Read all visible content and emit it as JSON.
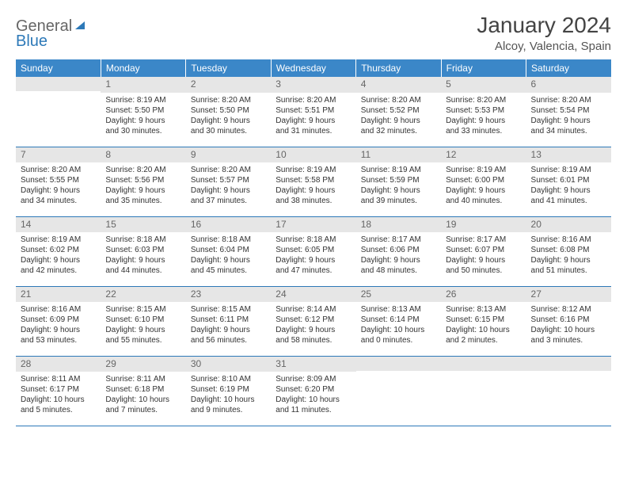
{
  "brand": {
    "general": "General",
    "blue": "Blue"
  },
  "title": "January 2024",
  "location": "Alcoy, Valencia, Spain",
  "weekdays": [
    "Sunday",
    "Monday",
    "Tuesday",
    "Wednesday",
    "Thursday",
    "Friday",
    "Saturday"
  ],
  "colors": {
    "header_bg": "#3b87c8",
    "header_text": "#ffffff",
    "daynum_bg": "#e6e6e6",
    "border": "#2d79b8",
    "logo_blue": "#2d79b8",
    "text": "#333333"
  },
  "weeks": [
    [
      {
        "num": "",
        "lines": []
      },
      {
        "num": "1",
        "lines": [
          "Sunrise: 8:19 AM",
          "Sunset: 5:50 PM",
          "Daylight: 9 hours",
          "and 30 minutes."
        ]
      },
      {
        "num": "2",
        "lines": [
          "Sunrise: 8:20 AM",
          "Sunset: 5:50 PM",
          "Daylight: 9 hours",
          "and 30 minutes."
        ]
      },
      {
        "num": "3",
        "lines": [
          "Sunrise: 8:20 AM",
          "Sunset: 5:51 PM",
          "Daylight: 9 hours",
          "and 31 minutes."
        ]
      },
      {
        "num": "4",
        "lines": [
          "Sunrise: 8:20 AM",
          "Sunset: 5:52 PM",
          "Daylight: 9 hours",
          "and 32 minutes."
        ]
      },
      {
        "num": "5",
        "lines": [
          "Sunrise: 8:20 AM",
          "Sunset: 5:53 PM",
          "Daylight: 9 hours",
          "and 33 minutes."
        ]
      },
      {
        "num": "6",
        "lines": [
          "Sunrise: 8:20 AM",
          "Sunset: 5:54 PM",
          "Daylight: 9 hours",
          "and 34 minutes."
        ]
      }
    ],
    [
      {
        "num": "7",
        "lines": [
          "Sunrise: 8:20 AM",
          "Sunset: 5:55 PM",
          "Daylight: 9 hours",
          "and 34 minutes."
        ]
      },
      {
        "num": "8",
        "lines": [
          "Sunrise: 8:20 AM",
          "Sunset: 5:56 PM",
          "Daylight: 9 hours",
          "and 35 minutes."
        ]
      },
      {
        "num": "9",
        "lines": [
          "Sunrise: 8:20 AM",
          "Sunset: 5:57 PM",
          "Daylight: 9 hours",
          "and 37 minutes."
        ]
      },
      {
        "num": "10",
        "lines": [
          "Sunrise: 8:19 AM",
          "Sunset: 5:58 PM",
          "Daylight: 9 hours",
          "and 38 minutes."
        ]
      },
      {
        "num": "11",
        "lines": [
          "Sunrise: 8:19 AM",
          "Sunset: 5:59 PM",
          "Daylight: 9 hours",
          "and 39 minutes."
        ]
      },
      {
        "num": "12",
        "lines": [
          "Sunrise: 8:19 AM",
          "Sunset: 6:00 PM",
          "Daylight: 9 hours",
          "and 40 minutes."
        ]
      },
      {
        "num": "13",
        "lines": [
          "Sunrise: 8:19 AM",
          "Sunset: 6:01 PM",
          "Daylight: 9 hours",
          "and 41 minutes."
        ]
      }
    ],
    [
      {
        "num": "14",
        "lines": [
          "Sunrise: 8:19 AM",
          "Sunset: 6:02 PM",
          "Daylight: 9 hours",
          "and 42 minutes."
        ]
      },
      {
        "num": "15",
        "lines": [
          "Sunrise: 8:18 AM",
          "Sunset: 6:03 PM",
          "Daylight: 9 hours",
          "and 44 minutes."
        ]
      },
      {
        "num": "16",
        "lines": [
          "Sunrise: 8:18 AM",
          "Sunset: 6:04 PM",
          "Daylight: 9 hours",
          "and 45 minutes."
        ]
      },
      {
        "num": "17",
        "lines": [
          "Sunrise: 8:18 AM",
          "Sunset: 6:05 PM",
          "Daylight: 9 hours",
          "and 47 minutes."
        ]
      },
      {
        "num": "18",
        "lines": [
          "Sunrise: 8:17 AM",
          "Sunset: 6:06 PM",
          "Daylight: 9 hours",
          "and 48 minutes."
        ]
      },
      {
        "num": "19",
        "lines": [
          "Sunrise: 8:17 AM",
          "Sunset: 6:07 PM",
          "Daylight: 9 hours",
          "and 50 minutes."
        ]
      },
      {
        "num": "20",
        "lines": [
          "Sunrise: 8:16 AM",
          "Sunset: 6:08 PM",
          "Daylight: 9 hours",
          "and 51 minutes."
        ]
      }
    ],
    [
      {
        "num": "21",
        "lines": [
          "Sunrise: 8:16 AM",
          "Sunset: 6:09 PM",
          "Daylight: 9 hours",
          "and 53 minutes."
        ]
      },
      {
        "num": "22",
        "lines": [
          "Sunrise: 8:15 AM",
          "Sunset: 6:10 PM",
          "Daylight: 9 hours",
          "and 55 minutes."
        ]
      },
      {
        "num": "23",
        "lines": [
          "Sunrise: 8:15 AM",
          "Sunset: 6:11 PM",
          "Daylight: 9 hours",
          "and 56 minutes."
        ]
      },
      {
        "num": "24",
        "lines": [
          "Sunrise: 8:14 AM",
          "Sunset: 6:12 PM",
          "Daylight: 9 hours",
          "and 58 minutes."
        ]
      },
      {
        "num": "25",
        "lines": [
          "Sunrise: 8:13 AM",
          "Sunset: 6:14 PM",
          "Daylight: 10 hours",
          "and 0 minutes."
        ]
      },
      {
        "num": "26",
        "lines": [
          "Sunrise: 8:13 AM",
          "Sunset: 6:15 PM",
          "Daylight: 10 hours",
          "and 2 minutes."
        ]
      },
      {
        "num": "27",
        "lines": [
          "Sunrise: 8:12 AM",
          "Sunset: 6:16 PM",
          "Daylight: 10 hours",
          "and 3 minutes."
        ]
      }
    ],
    [
      {
        "num": "28",
        "lines": [
          "Sunrise: 8:11 AM",
          "Sunset: 6:17 PM",
          "Daylight: 10 hours",
          "and 5 minutes."
        ]
      },
      {
        "num": "29",
        "lines": [
          "Sunrise: 8:11 AM",
          "Sunset: 6:18 PM",
          "Daylight: 10 hours",
          "and 7 minutes."
        ]
      },
      {
        "num": "30",
        "lines": [
          "Sunrise: 8:10 AM",
          "Sunset: 6:19 PM",
          "Daylight: 10 hours",
          "and 9 minutes."
        ]
      },
      {
        "num": "31",
        "lines": [
          "Sunrise: 8:09 AM",
          "Sunset: 6:20 PM",
          "Daylight: 10 hours",
          "and 11 minutes."
        ]
      },
      {
        "num": "",
        "lines": []
      },
      {
        "num": "",
        "lines": []
      },
      {
        "num": "",
        "lines": []
      }
    ]
  ]
}
